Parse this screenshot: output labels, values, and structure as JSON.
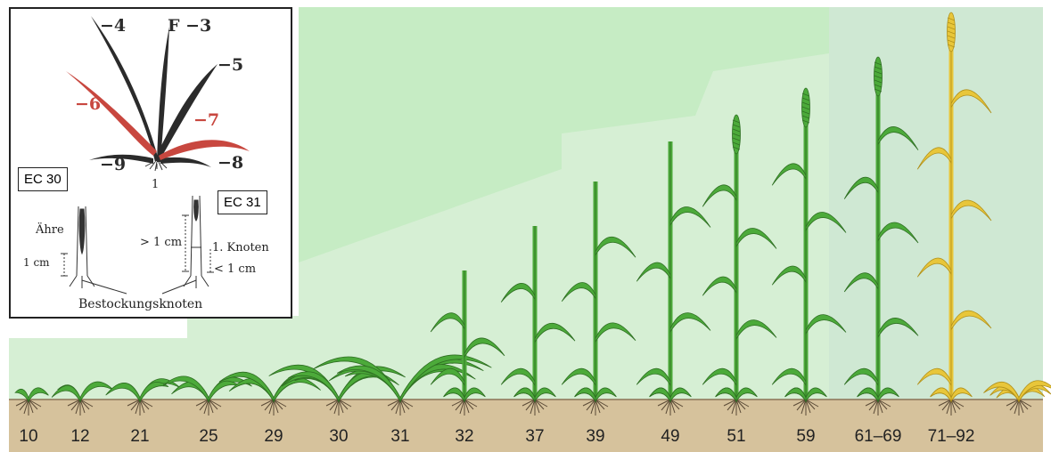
{
  "stages": [
    "10",
    "12",
    "21",
    "25",
    "29",
    "30",
    "31",
    "32",
    "37",
    "39",
    "49",
    "51",
    "59",
    "61–69",
    "71–92"
  ],
  "colors": {
    "sky": "#d8efd6",
    "sky_light": "#cdeccb",
    "soil": "#d6c29c",
    "leaf_green": "#4caa3a",
    "leaf_dark": "#2e6e22",
    "ripe": "#e8c63a",
    "inset_dark_leaf": "#2b2b2b",
    "inset_red_leaf": "#c8473f"
  },
  "inset": {
    "leaves": {
      "l4": "−4",
      "f3": "F −3",
      "l5": "−5",
      "l6": "−6",
      "l7": "−7",
      "l8": "−8",
      "l9": "−9",
      "l1": "1"
    },
    "ec30": "EC 30",
    "ec31": "EC 31",
    "ahre": "Ähre",
    "one_cm": "1 cm",
    "gt_one_cm": "> 1 cm",
    "knoten": "1. Knoten",
    "lt_one_cm": "< 1 cm",
    "bestockung": "Bestockungsknoten"
  }
}
